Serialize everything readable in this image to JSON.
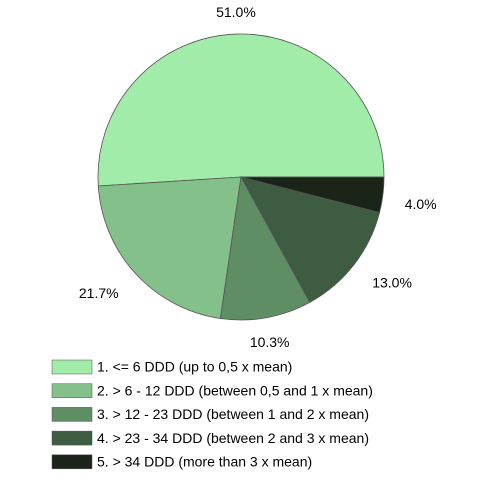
{
  "chart_data": {
    "type": "pie",
    "categories": [
      "1. <= 6 DDD (up to 0,5 x mean)",
      "2. > 6 - 12 DDD (between 0,5 and 1 x mean)",
      "3. > 12 - 23 DDD (between 1 and 2 x mean)",
      "4. > 23 - 34 DDD (between 2 and 3 x mean)",
      "5. > 34 DDD (more than 3 x mean)"
    ],
    "values": [
      51.0,
      21.7,
      10.3,
      13.0,
      4.0
    ],
    "value_labels": [
      "51.0%",
      "21.7%",
      "10.3%",
      "13.0%",
      "4.0%"
    ],
    "colors": [
      "#a0eca8",
      "#84c08a",
      "#5f8d64",
      "#3d5c42",
      "#1a2419"
    ]
  }
}
